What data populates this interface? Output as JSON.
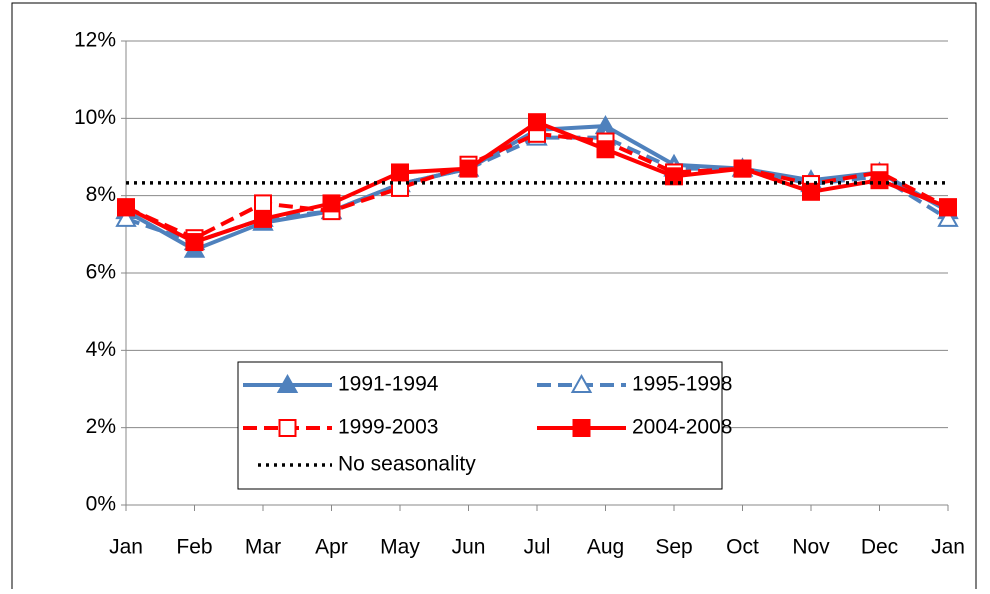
{
  "chart_data": {
    "type": "line",
    "categories": [
      "Jan",
      "Feb",
      "Mar",
      "Apr",
      "May",
      "Jun",
      "Jul",
      "Aug",
      "Sep",
      "Oct",
      "Nov",
      "Dec",
      "Jan"
    ],
    "series": [
      {
        "name": "1991-1994",
        "color": "#4f81bd",
        "dash": "solid",
        "marker": "triangle",
        "filled": true,
        "values": [
          7.6,
          6.6,
          7.3,
          7.6,
          8.3,
          8.7,
          9.7,
          9.8,
          8.8,
          8.7,
          8.4,
          8.6,
          7.6
        ]
      },
      {
        "name": "1995-1998",
        "color": "#4f81bd",
        "dash": "dashed",
        "marker": "triangle",
        "filled": false,
        "values": [
          7.4,
          6.8,
          7.4,
          7.6,
          8.3,
          8.7,
          9.5,
          9.5,
          8.7,
          8.7,
          8.3,
          8.5,
          7.4
        ]
      },
      {
        "name": "1999-2003",
        "color": "#ff0000",
        "dash": "dashed",
        "marker": "square",
        "filled": false,
        "values": [
          7.7,
          6.9,
          7.8,
          7.6,
          8.2,
          8.8,
          9.6,
          9.4,
          8.6,
          8.7,
          8.3,
          8.6,
          7.7
        ]
      },
      {
        "name": "2004-2008",
        "color": "#ff0000",
        "dash": "solid",
        "marker": "square",
        "filled": true,
        "values": [
          7.7,
          6.8,
          7.4,
          7.8,
          8.6,
          8.7,
          9.9,
          9.2,
          8.5,
          8.7,
          8.1,
          8.4,
          7.7
        ]
      },
      {
        "name": "No seasonality",
        "color": "#000000",
        "dash": "dotted",
        "marker": "none",
        "filled": false,
        "values": [
          8.33,
          8.33,
          8.33,
          8.33,
          8.33,
          8.33,
          8.33,
          8.33,
          8.33,
          8.33,
          8.33,
          8.33,
          8.33
        ]
      }
    ],
    "ylim": [
      0,
      12
    ],
    "yticks": [
      {
        "value": 0,
        "label": "0%"
      },
      {
        "value": 2,
        "label": "2%"
      },
      {
        "value": 4,
        "label": "4%"
      },
      {
        "value": 6,
        "label": "6%"
      },
      {
        "value": 8,
        "label": "8%"
      },
      {
        "value": 10,
        "label": "10%"
      },
      {
        "value": 12,
        "label": "12%"
      }
    ],
    "grid": true,
    "legend": "bottom-center"
  }
}
